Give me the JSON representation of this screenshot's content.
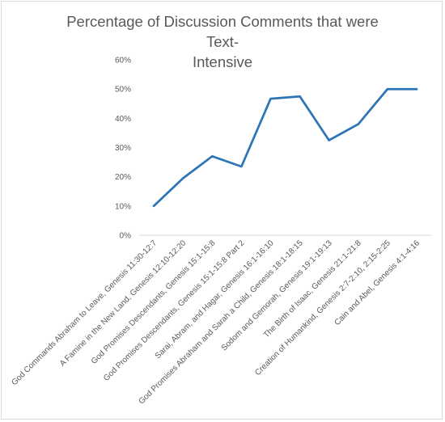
{
  "chart_data": {
    "type": "line",
    "title": "Percentage of Discussion Comments that were Text-Intensive",
    "title_line1": "Percentage of Discussion Comments that were Text-",
    "title_line2": "Intensive",
    "xlabel": "",
    "ylabel": "",
    "ylim": [
      0,
      60
    ],
    "y_ticks": [
      "0%",
      "10%",
      "20%",
      "30%",
      "40%",
      "50%",
      "60%"
    ],
    "y_tick_values": [
      0,
      10,
      20,
      30,
      40,
      50,
      60
    ],
    "grid": false,
    "legend": "none",
    "line_color": "#2e75b6",
    "categories": [
      "God Commands Abraham to Leave, Genesis 11:30-12:7",
      "A Famine in the New Land, Genesis 12:10-12:20",
      "God Promises Descendants, Genesis 15:1-15:8",
      "God Promises Descendants, Genesis 15:1-15:8 Part 2",
      "Sarai, Abram, and Hagar, Genesis 16:1-16:10",
      "God Promises Abraham and Sarah a Child, Genesis 18:1-18:15",
      "Sodom and Gemorah, Genesis 19:1-19:13",
      "The Birth of Isaac, Genesis 21:1-21:8",
      "Creation of Humankind, Genesis 2:7-2:10, 2:15-2:25",
      "Cain and Abel, Genesis 4:1-4:16"
    ],
    "series": [
      {
        "values": [
          10,
          19.5,
          27,
          23.5,
          46.7,
          47.5,
          32.5,
          38,
          50,
          50
        ]
      }
    ]
  }
}
